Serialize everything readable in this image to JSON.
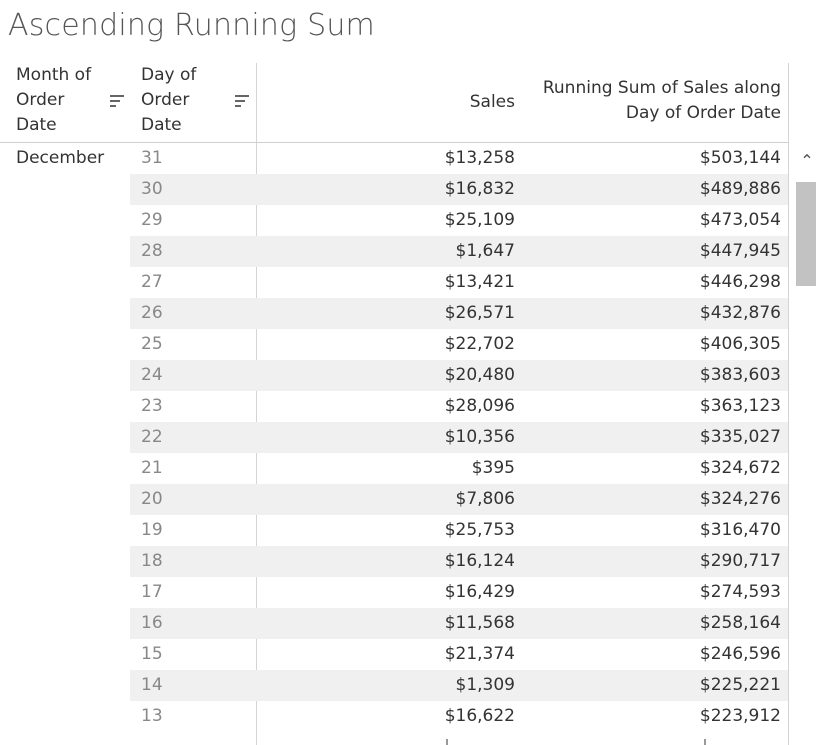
{
  "title": "Ascending Running Sum",
  "headers": {
    "month": [
      "Month of",
      "Order",
      "Date"
    ],
    "day": [
      "Day of",
      "Order",
      "Date"
    ],
    "sales": "Sales",
    "running_sum": [
      "Running Sum of Sales along",
      "Day of Order Date"
    ]
  },
  "month_label": "December",
  "rows": [
    {
      "day": "31",
      "sales": "$13,258",
      "running_sum": "$503,144"
    },
    {
      "day": "30",
      "sales": "$16,832",
      "running_sum": "$489,886"
    },
    {
      "day": "29",
      "sales": "$25,109",
      "running_sum": "$473,054"
    },
    {
      "day": "28",
      "sales": "$1,647",
      "running_sum": "$447,945"
    },
    {
      "day": "27",
      "sales": "$13,421",
      "running_sum": "$446,298"
    },
    {
      "day": "26",
      "sales": "$26,571",
      "running_sum": "$432,876"
    },
    {
      "day": "25",
      "sales": "$22,702",
      "running_sum": "$406,305"
    },
    {
      "day": "24",
      "sales": "$20,480",
      "running_sum": "$383,603"
    },
    {
      "day": "23",
      "sales": "$28,096",
      "running_sum": "$363,123"
    },
    {
      "day": "22",
      "sales": "$10,356",
      "running_sum": "$335,027"
    },
    {
      "day": "21",
      "sales": "$395",
      "running_sum": "$324,672"
    },
    {
      "day": "20",
      "sales": "$7,806",
      "running_sum": "$324,276"
    },
    {
      "day": "19",
      "sales": "$25,753",
      "running_sum": "$316,470"
    },
    {
      "day": "18",
      "sales": "$16,124",
      "running_sum": "$290,717"
    },
    {
      "day": "17",
      "sales": "$16,429",
      "running_sum": "$274,593"
    },
    {
      "day": "16",
      "sales": "$11,568",
      "running_sum": "$258,164"
    },
    {
      "day": "15",
      "sales": "$21,374",
      "running_sum": "$246,596"
    },
    {
      "day": "14",
      "sales": "$1,309",
      "running_sum": "$225,221"
    },
    {
      "day": "13",
      "sales": "$16,622",
      "running_sum": "$223,912"
    }
  ],
  "icons": {
    "sort_month": "sort-icon",
    "sort_day": "sort-icon",
    "scroll_up": "chevron-up-icon"
  },
  "colors": {
    "alt_row": "#f0f0f0",
    "scroll_thumb": "#c2c2c2"
  }
}
